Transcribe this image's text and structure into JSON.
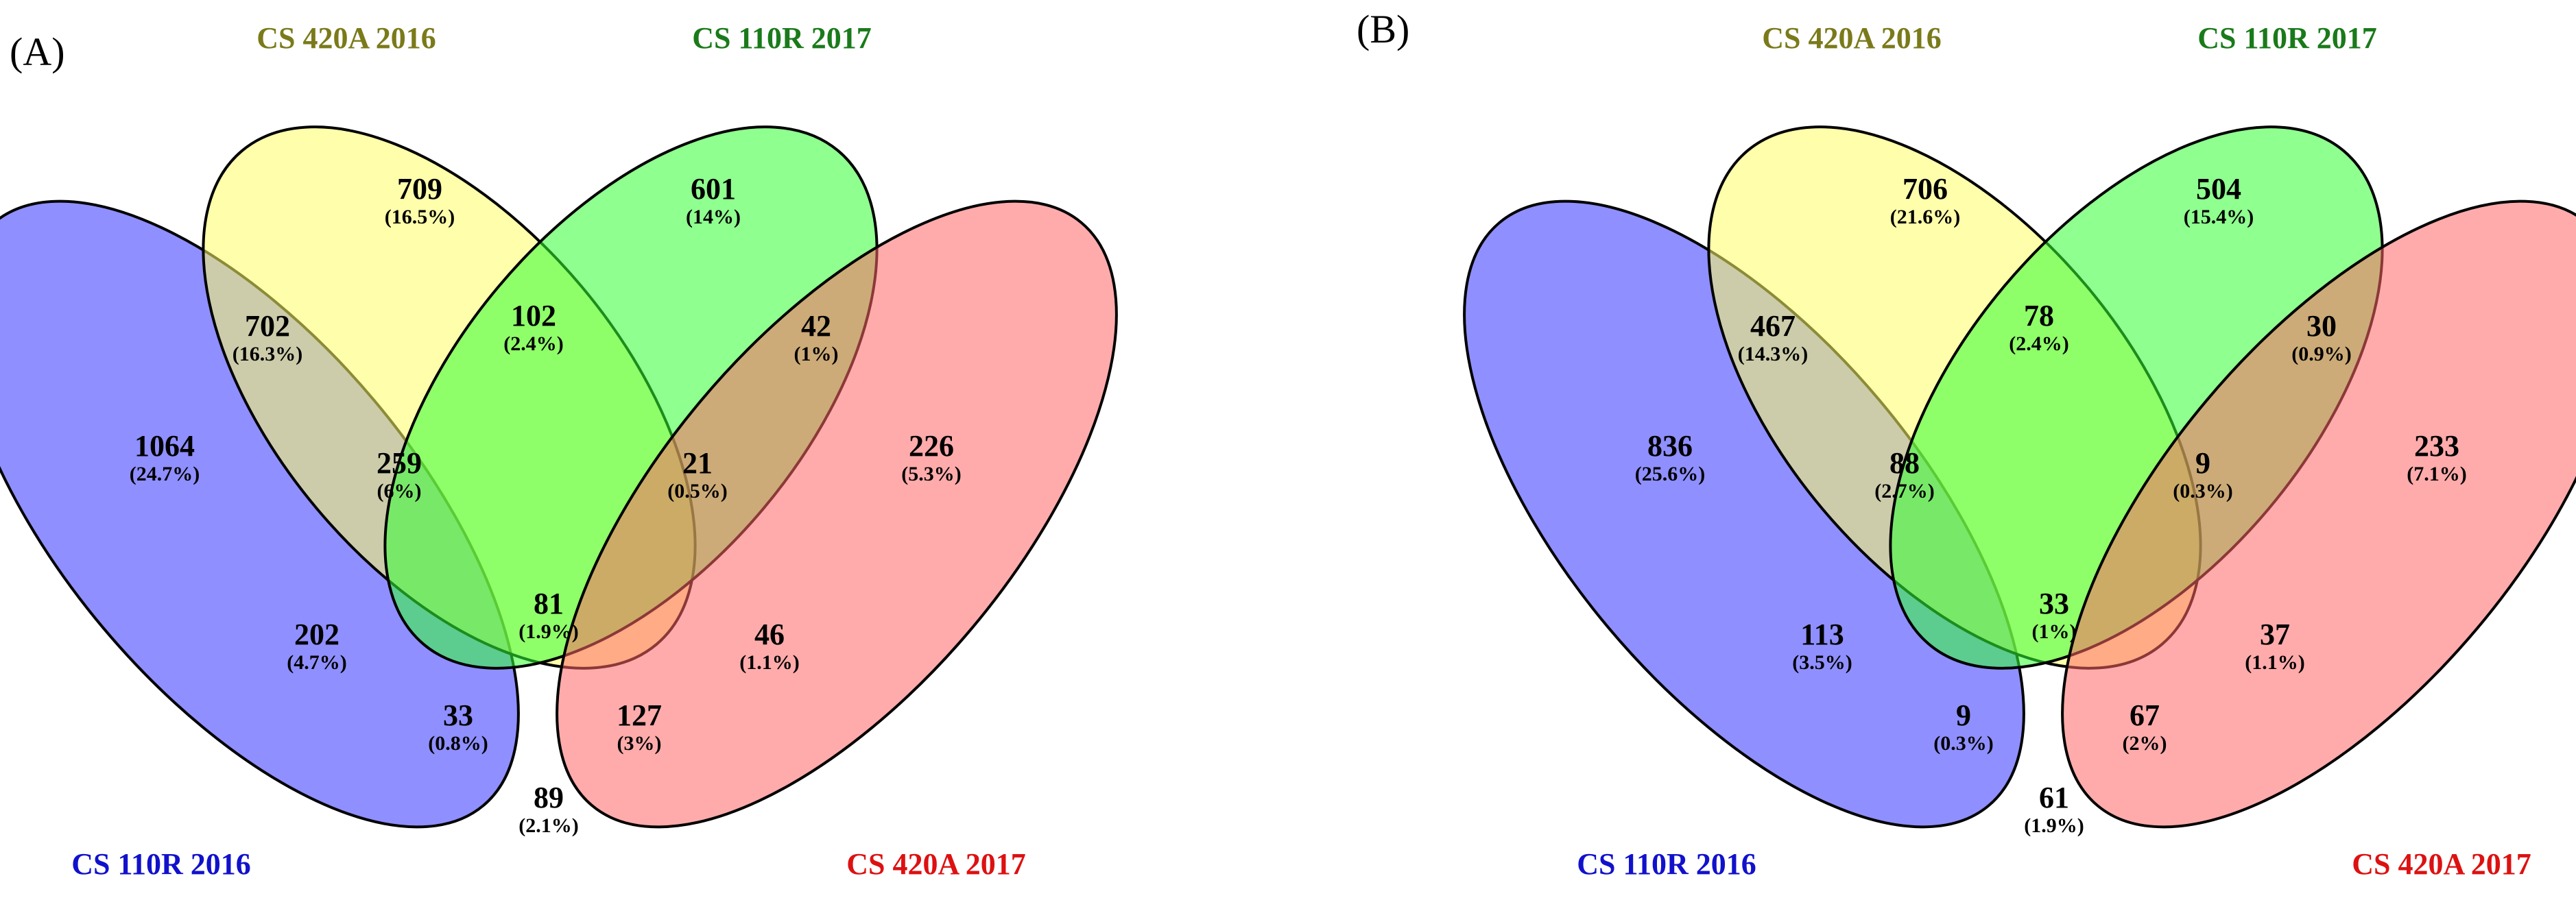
{
  "panels": [
    {
      "label": "(A)",
      "sets": [
        {
          "name": "CS 110R 2016",
          "color": "#3333ff",
          "label_color": "#1111cc"
        },
        {
          "name": "CS 420A 2016",
          "color": "#ffff66",
          "label_color": "#7a7a1a"
        },
        {
          "name": "CS 110R 2017",
          "color": "#33ff33",
          "label_color": "#1a7a1a"
        },
        {
          "name": "CS 420A 2017",
          "color": "#ff6666",
          "label_color": "#dd1111"
        }
      ],
      "regions": [
        {
          "id": "blue_only",
          "count": "1064",
          "pct": "(24.7%)"
        },
        {
          "id": "yellow_only",
          "count": "709",
          "pct": "(16.5%)"
        },
        {
          "id": "green_only",
          "count": "601",
          "pct": "(14%)"
        },
        {
          "id": "red_only",
          "count": "226",
          "pct": "(5.3%)"
        },
        {
          "id": "blue_yellow",
          "count": "702",
          "pct": "(16.3%)"
        },
        {
          "id": "yellow_green",
          "count": "102",
          "pct": "(2.4%)"
        },
        {
          "id": "green_red",
          "count": "42",
          "pct": "(1%)"
        },
        {
          "id": "blue_yellow_green",
          "count": "259",
          "pct": "(6%)"
        },
        {
          "id": "yellow_green_red",
          "count": "21",
          "pct": "(0.5%)"
        },
        {
          "id": "all_four",
          "count": "81",
          "pct": "(1.9%)"
        },
        {
          "id": "blue_green",
          "count": "202",
          "pct": "(4.7%)"
        },
        {
          "id": "yellow_red",
          "count": "46",
          "pct": "(1.1%)"
        },
        {
          "id": "blue_green_red",
          "count": "33",
          "pct": "(0.8%)"
        },
        {
          "id": "blue_yellow_red",
          "count": "127",
          "pct": "(3%)"
        },
        {
          "id": "blue_red",
          "count": "89",
          "pct": "(2.1%)"
        }
      ]
    },
    {
      "label": "(B)",
      "sets": [
        {
          "name": "CS 110R 2016",
          "color": "#3333ff",
          "label_color": "#1111cc"
        },
        {
          "name": "CS 420A 2016",
          "color": "#ffff66",
          "label_color": "#7a7a1a"
        },
        {
          "name": "CS 110R 2017",
          "color": "#33ff33",
          "label_color": "#1a7a1a"
        },
        {
          "name": "CS 420A 2017",
          "color": "#ff6666",
          "label_color": "#dd1111"
        }
      ],
      "regions": [
        {
          "id": "blue_only",
          "count": "836",
          "pct": "(25.6%)"
        },
        {
          "id": "yellow_only",
          "count": "706",
          "pct": "(21.6%)"
        },
        {
          "id": "green_only",
          "count": "504",
          "pct": "(15.4%)"
        },
        {
          "id": "red_only",
          "count": "233",
          "pct": "(7.1%)"
        },
        {
          "id": "blue_yellow",
          "count": "467",
          "pct": "(14.3%)"
        },
        {
          "id": "yellow_green",
          "count": "78",
          "pct": "(2.4%)"
        },
        {
          "id": "green_red",
          "count": "30",
          "pct": "(0.9%)"
        },
        {
          "id": "blue_yellow_green",
          "count": "88",
          "pct": "(2.7%)"
        },
        {
          "id": "yellow_green_red",
          "count": "9",
          "pct": "(0.3%)"
        },
        {
          "id": "all_four",
          "count": "33",
          "pct": "(1%)"
        },
        {
          "id": "blue_green",
          "count": "113",
          "pct": "(3.5%)"
        },
        {
          "id": "yellow_red",
          "count": "37",
          "pct": "(1.1%)"
        },
        {
          "id": "blue_green_red",
          "count": "9",
          "pct": "(0.3%)"
        },
        {
          "id": "blue_yellow_red",
          "count": "67",
          "pct": "(2%)"
        },
        {
          "id": "blue_red",
          "count": "61",
          "pct": "(1.9%)"
        }
      ]
    }
  ]
}
